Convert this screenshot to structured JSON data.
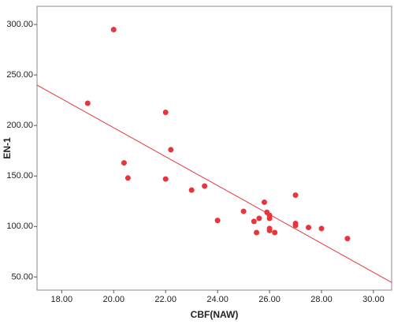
{
  "chart_data": {
    "type": "scatter",
    "x_label": "CBF(NAW)",
    "y_label": "EN-1",
    "color": "#e8343c",
    "x": [
      19.0,
      20.0,
      20.4,
      20.55,
      22.0,
      22.0,
      22.2,
      23.0,
      23.5,
      24.0,
      25.0,
      25.4,
      25.5,
      25.6,
      25.8,
      25.9,
      26.0,
      26.0,
      26.0,
      26.0,
      26.2,
      27.0,
      27.0,
      27.0,
      27.5,
      28.0,
      29.0
    ],
    "values": [
      222,
      295,
      163,
      148,
      213,
      147,
      176,
      136,
      140,
      106,
      115,
      105,
      94,
      108,
      124,
      114,
      111,
      108,
      98,
      96,
      94,
      131,
      103,
      101,
      99,
      98,
      88
    ],
    "trendline": {
      "x": [
        17.05,
        30.7
      ],
      "values": [
        240,
        44.6
      ]
    },
    "xlim": [
      17.05,
      30.7
    ],
    "ylim": [
      37,
      318
    ],
    "xticks": [
      {
        "value": 18,
        "label": "18.00"
      },
      {
        "value": 20,
        "label": "20.00"
      },
      {
        "value": 22,
        "label": "22.00"
      },
      {
        "value": 24,
        "label": "24.00"
      },
      {
        "value": 26,
        "label": "26.00"
      },
      {
        "value": 28,
        "label": "28.00"
      },
      {
        "value": 30,
        "label": "30.00"
      }
    ],
    "yticks": [
      {
        "value": 50,
        "label": "50.00"
      },
      {
        "value": 100,
        "label": "100.00"
      },
      {
        "value": 150,
        "label": "150.00"
      },
      {
        "value": 200,
        "label": "200.00"
      },
      {
        "value": 250,
        "label": "250.00"
      },
      {
        "value": 300,
        "label": "300.00"
      }
    ]
  }
}
